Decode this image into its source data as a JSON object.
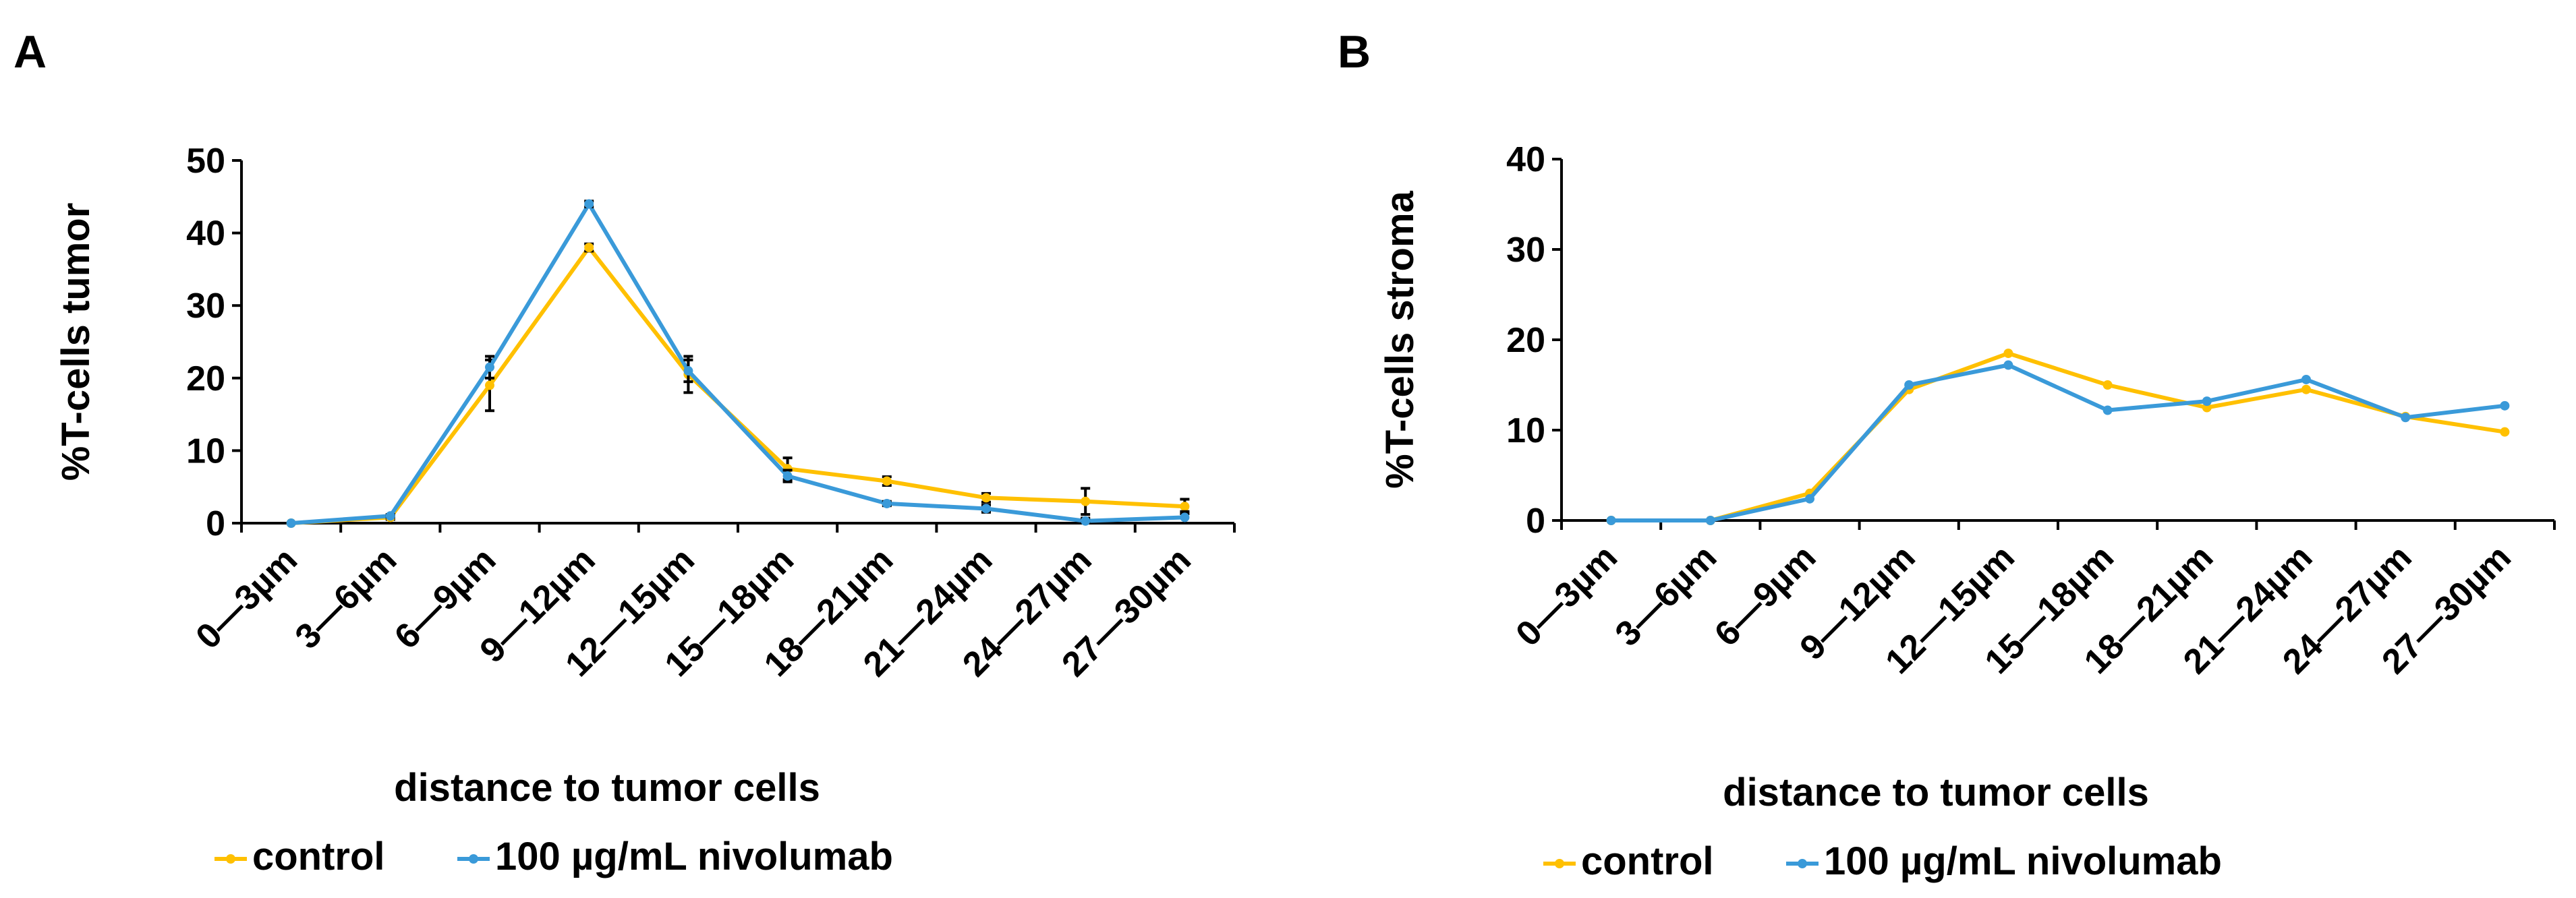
{
  "chart_data": [
    {
      "panel_label": "A",
      "type": "line",
      "xlabel": "distance to tumor cells",
      "ylabel": "%T-cells tumor",
      "categories": [
        "0—3µm",
        "3—6µm",
        "6—9µm",
        "9—12µm",
        "12—15µm",
        "15—18µm",
        "18—21µm",
        "21—24µm",
        "24—27µm",
        "27—30µm"
      ],
      "ylim": [
        0,
        50
      ],
      "yticks": [
        0,
        10,
        20,
        30,
        40,
        50
      ],
      "series": [
        {
          "name": "control",
          "color": "#FFC000",
          "values": [
            0,
            0.8,
            19,
            38,
            20.5,
            7.5,
            5.8,
            3.5,
            3.0,
            2.3
          ],
          "errors": [
            0,
            0.3,
            3.5,
            0.5,
            2.5,
            1.5,
            0.6,
            0.6,
            1.8,
            1.0
          ]
        },
        {
          "name": "100 µg/mL nivolumab",
          "color": "#3A9AD9",
          "values": [
            0,
            1.0,
            21.5,
            44,
            21,
            6.5,
            2.7,
            2.0,
            0.3,
            0.8
          ],
          "errors": [
            0,
            0.2,
            1.5,
            0.4,
            1.5,
            0.8,
            0.3,
            0.5,
            0.4,
            0.8
          ]
        }
      ]
    },
    {
      "panel_label": "B",
      "type": "line",
      "xlabel": "distance to tumor cells",
      "ylabel": "%T-cells stroma",
      "categories": [
        "0—3µm",
        "3—6µm",
        "6—9µm",
        "9—12µm",
        "12—15µm",
        "15—18µm",
        "18—21µm",
        "21—24µm",
        "24—27µm",
        "27—30µm"
      ],
      "ylim": [
        0,
        40
      ],
      "yticks": [
        0,
        10,
        20,
        30,
        40
      ],
      "series": [
        {
          "name": "control",
          "color": "#FFC000",
          "values": [
            0,
            0,
            3.0,
            14.5,
            18.5,
            15,
            12.5,
            14.5,
            11.5,
            9.8
          ]
        },
        {
          "name": "100 µg/mL nivolumab",
          "color": "#3A9AD9",
          "values": [
            0,
            0,
            2.4,
            15,
            17.2,
            12.2,
            13.2,
            15.6,
            11.4,
            12.7
          ]
        }
      ]
    }
  ]
}
